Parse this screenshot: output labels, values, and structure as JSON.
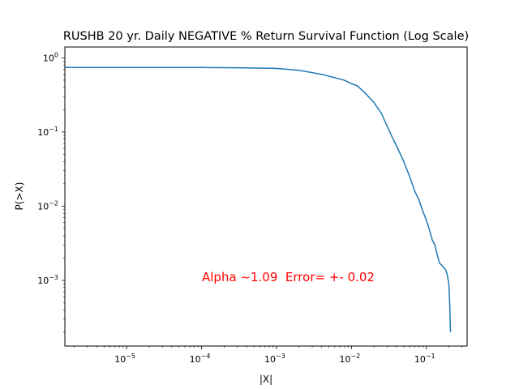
{
  "chart_data": {
    "type": "line",
    "title": "RUSHB 20 yr. Daily NEGATIVE % Return Survival Function (Log Scale)",
    "xlabel": "|X|",
    "ylabel": "P(>X)",
    "xscale": "log",
    "yscale": "log",
    "xlim": [
      1.5e-06,
      0.35
    ],
    "ylim": [
      0.00013,
      1.4
    ],
    "x_ticks": [
      {
        "value": 1e-05,
        "base": "10",
        "exp": "−5"
      },
      {
        "value": 0.0001,
        "base": "10",
        "exp": "−4"
      },
      {
        "value": 0.001,
        "base": "10",
        "exp": "−3"
      },
      {
        "value": 0.01,
        "base": "10",
        "exp": "−2"
      },
      {
        "value": 0.1,
        "base": "10",
        "exp": "−1"
      }
    ],
    "y_ticks": [
      {
        "value": 1,
        "base": "10",
        "exp": "0"
      },
      {
        "value": 0.1,
        "base": "10",
        "exp": "−1"
      },
      {
        "value": 0.01,
        "base": "10",
        "exp": "−2"
      },
      {
        "value": 0.001,
        "base": "10",
        "exp": "−3"
      }
    ],
    "series": [
      {
        "color": "#1f77b4",
        "x": [
          1.5e-06,
          1e-05,
          0.0001,
          0.0003,
          0.001,
          0.002,
          0.004,
          0.006,
          0.008,
          0.01,
          0.012,
          0.015,
          0.02,
          0.025,
          0.03,
          0.035,
          0.04,
          0.05,
          0.06,
          0.07,
          0.08,
          0.09,
          0.1,
          0.11,
          0.12,
          0.13,
          0.14,
          0.15,
          0.16,
          0.17,
          0.18,
          0.19,
          0.2,
          0.205,
          0.21
        ],
        "y": [
          0.74,
          0.74,
          0.74,
          0.735,
          0.72,
          0.68,
          0.6,
          0.54,
          0.5,
          0.45,
          0.42,
          0.34,
          0.25,
          0.18,
          0.12,
          0.085,
          0.065,
          0.04,
          0.025,
          0.016,
          0.012,
          0.0085,
          0.0065,
          0.0048,
          0.0035,
          0.003,
          0.0022,
          0.0017,
          0.0016,
          0.0015,
          0.0014,
          0.0012,
          0.0009,
          0.0005,
          0.0002
        ]
      }
    ],
    "annotation": {
      "text": "Alpha ~1.09  Error= +- 0.02",
      "color": "#ff0000"
    }
  }
}
